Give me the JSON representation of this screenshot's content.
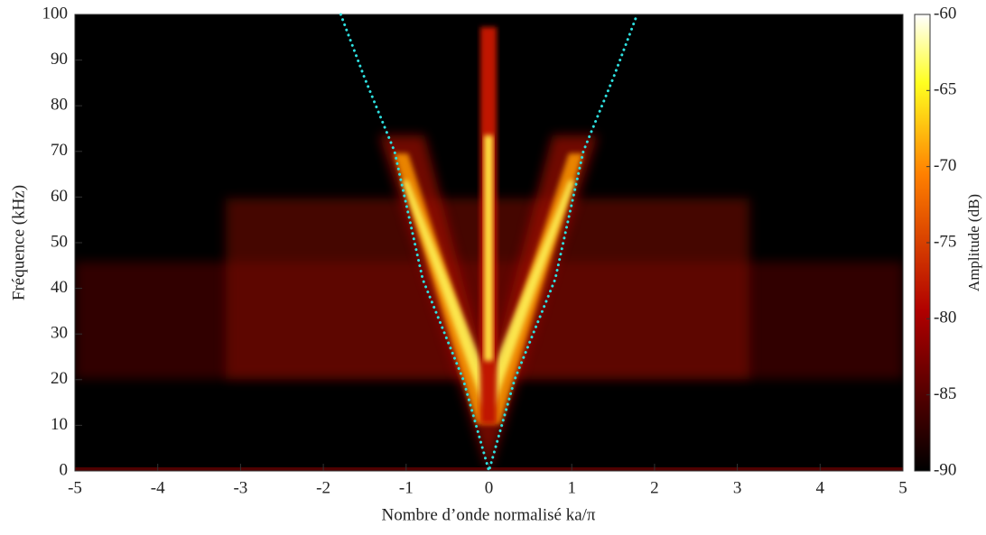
{
  "chart_data": {
    "type": "heatmap",
    "xlabel": "Nombre d’onde normalisé ka/π",
    "ylabel": "Fréquence (kHz)",
    "colorbar_label": "Amplitude (dB)",
    "colormap": "hot",
    "xlim": [
      -5,
      5
    ],
    "xticks": [
      -5,
      -4,
      -3,
      -2,
      -1,
      0,
      1,
      2,
      3,
      4,
      5
    ],
    "ylim": [
      0,
      100
    ],
    "yticks": [
      0,
      10,
      20,
      30,
      40,
      50,
      60,
      70,
      80,
      90,
      100
    ],
    "clim": [
      -90,
      -60
    ],
    "cticks": [
      -90,
      -85,
      -80,
      -75,
      -70,
      -65,
      -60
    ],
    "series": [
      {
        "color": "#2ee0e0",
        "style": "dotted",
        "x": [
          -1.79,
          -1.5,
          -1.14,
          -0.8,
          -0.31,
          0,
          0.31,
          0.8,
          1.14,
          1.5,
          1.79
        ],
        "values": [
          100,
          86,
          70,
          42,
          20,
          0,
          20,
          42,
          70,
          86,
          100
        ]
      }
    ]
  }
}
